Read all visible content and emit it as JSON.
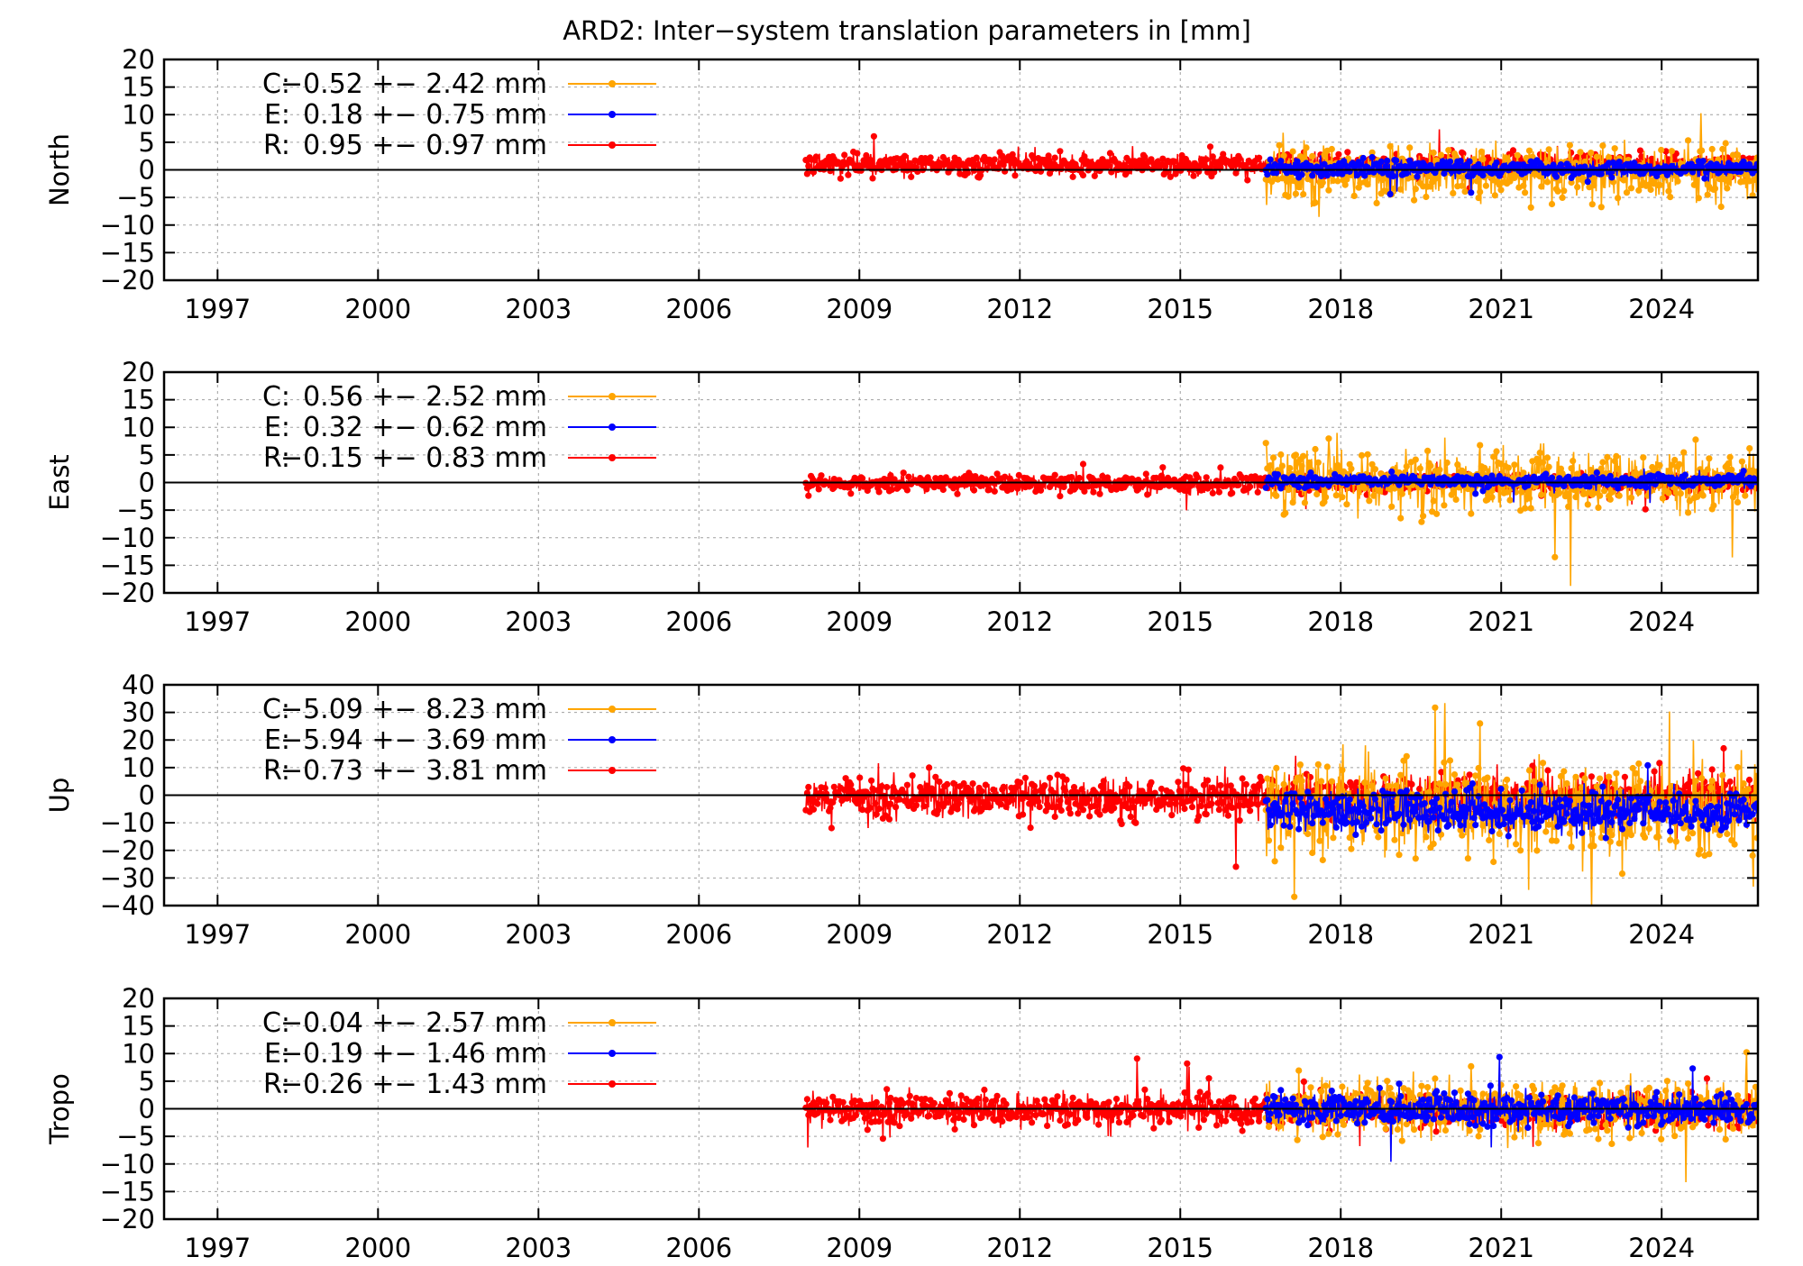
{
  "title": "ARD2: Inter−system translation parameters in [mm]",
  "colors": {
    "C": "#ffa500",
    "E": "#0000ff",
    "R": "#ff0000",
    "zero_line": "#000000",
    "grid": "#a0a0a0"
  },
  "chart_data": [
    {
      "type": "line",
      "ylabel": "North",
      "xlim": [
        1996,
        2025.8
      ],
      "ylim": [
        -20,
        20
      ],
      "yticks": [
        20,
        15,
        10,
        5,
        0,
        -5,
        -10,
        -15,
        -20
      ],
      "ytick_labels": [
        "20",
        "15",
        "10",
        "5",
        "0",
        "−5",
        "−10",
        "−15",
        "−20"
      ],
      "xticks": [
        1997,
        2000,
        2003,
        2006,
        2009,
        2012,
        2015,
        2018,
        2021,
        2024
      ],
      "xtick_labels": [
        "1997",
        "2000",
        "2003",
        "2006",
        "2009",
        "2012",
        "2015",
        "2018",
        "2021",
        "2024"
      ],
      "grid": true,
      "legend_position": "top-left",
      "series": [
        {
          "name": "C:",
          "label": "C:  −0.52 +− 2.42 mm",
          "mean": -0.52,
          "std": 2.42,
          "start": 2016.6,
          "end": 2025.8
        },
        {
          "name": "E:",
          "label": "E:  0.18 +− 0.75 mm",
          "mean": 0.18,
          "std": 0.75,
          "start": 2016.6,
          "end": 2025.8
        },
        {
          "name": "R:",
          "label": "R:  0.95 +− 0.97 mm",
          "mean": 0.95,
          "std": 0.97,
          "start": 2008.0,
          "end": 2025.8
        }
      ]
    },
    {
      "type": "line",
      "ylabel": "East",
      "xlim": [
        1996,
        2025.8
      ],
      "ylim": [
        -20,
        20
      ],
      "yticks": [
        20,
        15,
        10,
        5,
        0,
        -5,
        -10,
        -15,
        -20
      ],
      "ytick_labels": [
        "20",
        "15",
        "10",
        "5",
        "0",
        "−5",
        "−10",
        "−15",
        "−20"
      ],
      "xticks": [
        1997,
        2000,
        2003,
        2006,
        2009,
        2012,
        2015,
        2018,
        2021,
        2024
      ],
      "xtick_labels": [
        "1997",
        "2000",
        "2003",
        "2006",
        "2009",
        "2012",
        "2015",
        "2018",
        "2021",
        "2024"
      ],
      "grid": true,
      "legend_position": "top-left",
      "series": [
        {
          "name": "C:",
          "label": "C:  0.56 +− 2.52 mm",
          "mean": 0.56,
          "std": 2.52,
          "start": 2016.6,
          "end": 2025.8
        },
        {
          "name": "E:",
          "label": "E:  0.32 +− 0.62 mm",
          "mean": 0.32,
          "std": 0.62,
          "start": 2016.6,
          "end": 2025.8
        },
        {
          "name": "R:",
          "label": "R:  −0.15 +− 0.83 mm",
          "mean": -0.15,
          "std": 0.83,
          "start": 2008.0,
          "end": 2025.8
        }
      ]
    },
    {
      "type": "line",
      "ylabel": "Up",
      "xlim": [
        1996,
        2025.8
      ],
      "ylim": [
        -40,
        40
      ],
      "yticks": [
        40,
        30,
        20,
        10,
        0,
        -10,
        -20,
        -30,
        -40
      ],
      "ytick_labels": [
        "40",
        "30",
        "20",
        "10",
        "0",
        "−10",
        "−20",
        "−30",
        "−40"
      ],
      "xticks": [
        1997,
        2000,
        2003,
        2006,
        2009,
        2012,
        2015,
        2018,
        2021,
        2024
      ],
      "xtick_labels": [
        "1997",
        "2000",
        "2003",
        "2006",
        "2009",
        "2012",
        "2015",
        "2018",
        "2021",
        "2024"
      ],
      "grid": true,
      "legend_position": "top-left",
      "series": [
        {
          "name": "C:",
          "label": "C:  −5.09 +− 8.23 mm",
          "mean": -5.09,
          "std": 8.23,
          "start": 2016.6,
          "end": 2025.8
        },
        {
          "name": "E:",
          "label": "E:  −5.94 +− 3.69 mm",
          "mean": -5.94,
          "std": 3.69,
          "start": 2016.6,
          "end": 2025.8
        },
        {
          "name": "R:",
          "label": "R:  −0.73 +− 3.81 mm",
          "mean": -0.73,
          "std": 3.81,
          "start": 2008.0,
          "end": 2025.8
        }
      ]
    },
    {
      "type": "line",
      "ylabel": "Tropo",
      "xlim": [
        1996,
        2025.8
      ],
      "ylim": [
        -20,
        20
      ],
      "yticks": [
        20,
        15,
        10,
        5,
        0,
        -5,
        -10,
        -15,
        -20
      ],
      "ytick_labels": [
        "20",
        "15",
        "10",
        "5",
        "0",
        "−5",
        "−10",
        "−15",
        "−20"
      ],
      "xticks": [
        1997,
        2000,
        2003,
        2006,
        2009,
        2012,
        2015,
        2018,
        2021,
        2024
      ],
      "xtick_labels": [
        "1997",
        "2000",
        "2003",
        "2006",
        "2009",
        "2012",
        "2015",
        "2018",
        "2021",
        "2024"
      ],
      "grid": true,
      "legend_position": "top-left",
      "series": [
        {
          "name": "C:",
          "label": "C:  −0.04 +− 2.57 mm",
          "mean": -0.04,
          "std": 2.57,
          "start": 2016.6,
          "end": 2025.8
        },
        {
          "name": "E:",
          "label": "E:  −0.19 +− 1.46 mm",
          "mean": -0.19,
          "std": 1.46,
          "start": 2016.6,
          "end": 2025.8
        },
        {
          "name": "R:",
          "label": "R:  −0.26 +− 1.43 mm",
          "mean": -0.26,
          "std": 1.43,
          "start": 2008.0,
          "end": 2025.8
        }
      ]
    }
  ]
}
